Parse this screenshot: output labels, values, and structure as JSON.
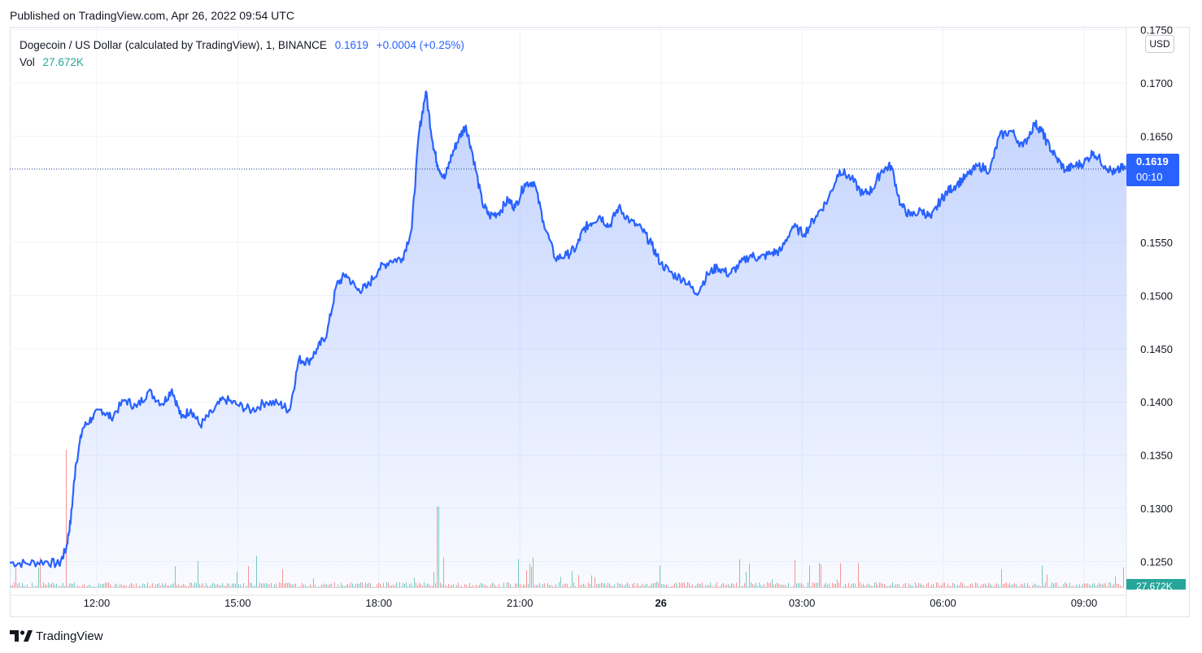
{
  "published": "Published on TradingView.com, Apr 26, 2022 09:54 UTC",
  "legend": {
    "symbol": "Dogecoin / US Dollar (calculated by TradingView), 1, BINANCE",
    "price": "0.1619",
    "change": "+0.0004 (+0.25%)",
    "vol_label": "Vol",
    "vol_value": "27.672K"
  },
  "currency": "USD",
  "price_tag": {
    "price": "0.1619",
    "countdown": "00:10"
  },
  "vol_tag": "27.672K",
  "footer": {
    "brand": "TradingView"
  },
  "colors": {
    "line": "#2962ff",
    "up": "#26a69a",
    "down": "#ef5350",
    "grid": "#f0f3fa"
  },
  "chart_data": {
    "type": "area",
    "title": "Dogecoin / US Dollar (calculated by TradingView), 1, BINANCE",
    "y_ticks": [
      "0.1750",
      "0.1700",
      "0.1650",
      "0.1550",
      "0.1500",
      "0.1450",
      "0.1400",
      "0.1350",
      "0.1300",
      "0.1250"
    ],
    "ylim": [
      0.1225,
      0.1752
    ],
    "x_ticks": [
      {
        "label": "12:00",
        "t": 12
      },
      {
        "label": "15:00",
        "t": 15
      },
      {
        "label": "18:00",
        "t": 18
      },
      {
        "label": "21:00",
        "t": 21
      },
      {
        "label": "26",
        "t": 24,
        "bold": true
      },
      {
        "label": "03:00",
        "t": 27
      },
      {
        "label": "06:00",
        "t": 30
      },
      {
        "label": "09:00",
        "t": 33
      }
    ],
    "xlim": [
      10.15,
      33.9
    ],
    "grid": true,
    "last_price": 0.1619,
    "series": [
      {
        "t": [
          10.15,
          10.5,
          10.9,
          11.2,
          11.35,
          11.45,
          11.55,
          11.7,
          11.9,
          12.1,
          12.3,
          12.6,
          12.85,
          13.1,
          13.4,
          13.6,
          13.8,
          14.0,
          14.2,
          14.45,
          14.7,
          15.0,
          15.3,
          15.6,
          15.9,
          16.1,
          16.3,
          16.5,
          16.7,
          16.9,
          17.1,
          17.3,
          17.55,
          17.75,
          18.0,
          18.25,
          18.5,
          18.7,
          18.85,
          19.0,
          19.15,
          19.25,
          19.4,
          19.55,
          19.7,
          19.85,
          20.0,
          20.2,
          20.35,
          20.55,
          20.75,
          20.9,
          21.1,
          21.3,
          21.5,
          21.75,
          22.0,
          22.2,
          22.35,
          22.5,
          22.7,
          22.9,
          23.1,
          23.35,
          23.6,
          23.8,
          24.0,
          24.25,
          24.5,
          24.75,
          25.0,
          25.2,
          25.45,
          25.65,
          25.9,
          26.1,
          26.35,
          26.55,
          26.8,
          27.05,
          27.3,
          27.55,
          27.8,
          28.05,
          28.3,
          28.5,
          28.7,
          28.9,
          29.1,
          29.3,
          29.55,
          29.75,
          29.95,
          30.1,
          30.3,
          30.5,
          30.75,
          31.0,
          31.2,
          31.45,
          31.7,
          31.95,
          32.1,
          32.2,
          32.4,
          32.6,
          32.8,
          33.0,
          33.2,
          33.45,
          33.65,
          33.8,
          33.9
        ],
        "v": [
          0.1249,
          0.1248,
          0.125,
          0.1247,
          0.1262,
          0.129,
          0.134,
          0.1375,
          0.1385,
          0.1393,
          0.1385,
          0.1402,
          0.1395,
          0.141,
          0.1398,
          0.1412,
          0.1385,
          0.1393,
          0.1378,
          0.139,
          0.1403,
          0.1397,
          0.1392,
          0.14,
          0.1398,
          0.1392,
          0.144,
          0.1438,
          0.145,
          0.1465,
          0.151,
          0.152,
          0.1505,
          0.1508,
          0.1525,
          0.1533,
          0.1535,
          0.1563,
          0.1652,
          0.1692,
          0.1643,
          0.1623,
          0.161,
          0.1632,
          0.1648,
          0.166,
          0.1632,
          0.1587,
          0.1575,
          0.1578,
          0.159,
          0.1583,
          0.1605,
          0.1607,
          0.157,
          0.1535,
          0.1538,
          0.1545,
          0.1562,
          0.1568,
          0.1575,
          0.1565,
          0.1583,
          0.157,
          0.1562,
          0.1548,
          0.153,
          0.152,
          0.1515,
          0.1502,
          0.152,
          0.1527,
          0.152,
          0.1528,
          0.1538,
          0.1535,
          0.154,
          0.1542,
          0.1565,
          0.1558,
          0.1575,
          0.159,
          0.1618,
          0.161,
          0.1595,
          0.16,
          0.1618,
          0.1622,
          0.1585,
          0.1575,
          0.158,
          0.1573,
          0.159,
          0.1598,
          0.1605,
          0.1612,
          0.1622,
          0.1618,
          0.165,
          0.1655,
          0.164,
          0.1662,
          0.1655,
          0.1645,
          0.163,
          0.1618,
          0.1622,
          0.1625,
          0.1635,
          0.1622,
          0.1615,
          0.162,
          0.1619
        ]
      }
    ]
  }
}
